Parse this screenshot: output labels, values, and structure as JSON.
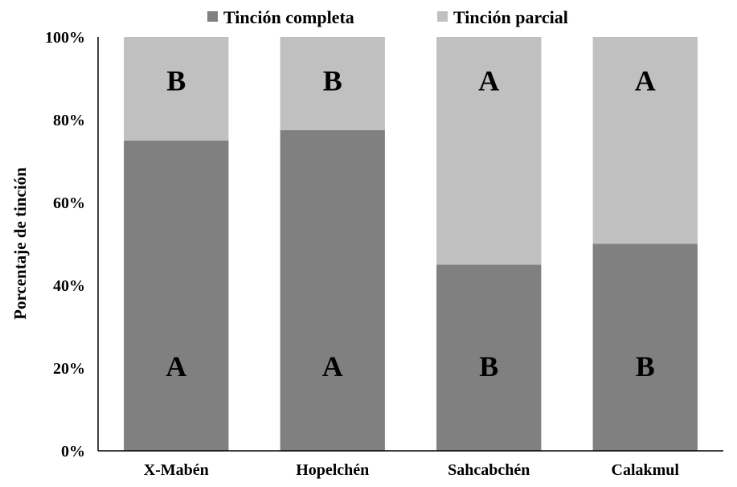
{
  "chart_data": {
    "type": "bar",
    "stacked": true,
    "normalized_percent": true,
    "categories": [
      "X-Mabén",
      "Hopelchén",
      "Sahcabchén",
      "Calakmul"
    ],
    "series": [
      {
        "name": "Tinción completa",
        "values": [
          75,
          77.5,
          45,
          50
        ],
        "color": "#808080",
        "letters": [
          "A",
          "A",
          "B",
          "B"
        ]
      },
      {
        "name": "Tinción parcial",
        "values": [
          25,
          22.5,
          55,
          50
        ],
        "color": "#c0c0c0",
        "letters": [
          "B",
          "B",
          "A",
          "A"
        ]
      }
    ],
    "ylabel": "Porcentaje de tinción",
    "xlabel": "",
    "ylim": [
      0,
      100
    ],
    "yticks": [
      "0%",
      "20%",
      "40%",
      "60%",
      "80%",
      "100%"
    ],
    "grid": false,
    "legend_position": "top"
  }
}
